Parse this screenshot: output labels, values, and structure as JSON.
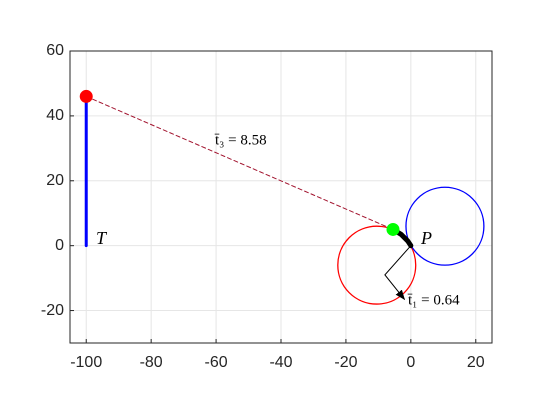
{
  "chart_data": {
    "type": "geometry",
    "xlim": [
      -105,
      25
    ],
    "ylim": [
      -30,
      60
    ],
    "xticks": [
      -100,
      -80,
      -60,
      -40,
      -20,
      0,
      20
    ],
    "yticks": [
      -20,
      0,
      20,
      40,
      60
    ],
    "grid": true,
    "lines": [
      {
        "x": [
          -100,
          -100
        ],
        "y": [
          0,
          46
        ],
        "color": "#0000ff",
        "width": 3,
        "dashed": false
      },
      {
        "x": [
          -100,
          -5.5
        ],
        "y": [
          46,
          5
        ],
        "color": "#a2142f",
        "width": 1,
        "dashed": true
      },
      {
        "x": [
          -5.5,
          -3,
          -1,
          0
        ],
        "y": [
          5,
          3.5,
          1.5,
          0
        ],
        "color": "#000000",
        "width": 5,
        "dashed": false
      },
      {
        "x": [
          0,
          -8,
          -2
        ],
        "y": [
          0,
          -9,
          -16.5
        ],
        "color": "#000000",
        "width": 1,
        "dashed": false,
        "arrow": true
      }
    ],
    "circles": [
      {
        "cx": -10.5,
        "cy": -6,
        "r": 12,
        "color": "#ff0000"
      },
      {
        "cx": 10.5,
        "cy": 6,
        "r": 12,
        "color": "#0000ff"
      }
    ],
    "points": [
      {
        "x": -100,
        "y": 46,
        "color": "#ff0000"
      },
      {
        "x": -5.5,
        "y": 5,
        "color": "#00ff00"
      }
    ],
    "annotations": [
      "t̄₃ = 8.58",
      "T",
      "P",
      "t̄₁ = 0.64"
    ]
  }
}
